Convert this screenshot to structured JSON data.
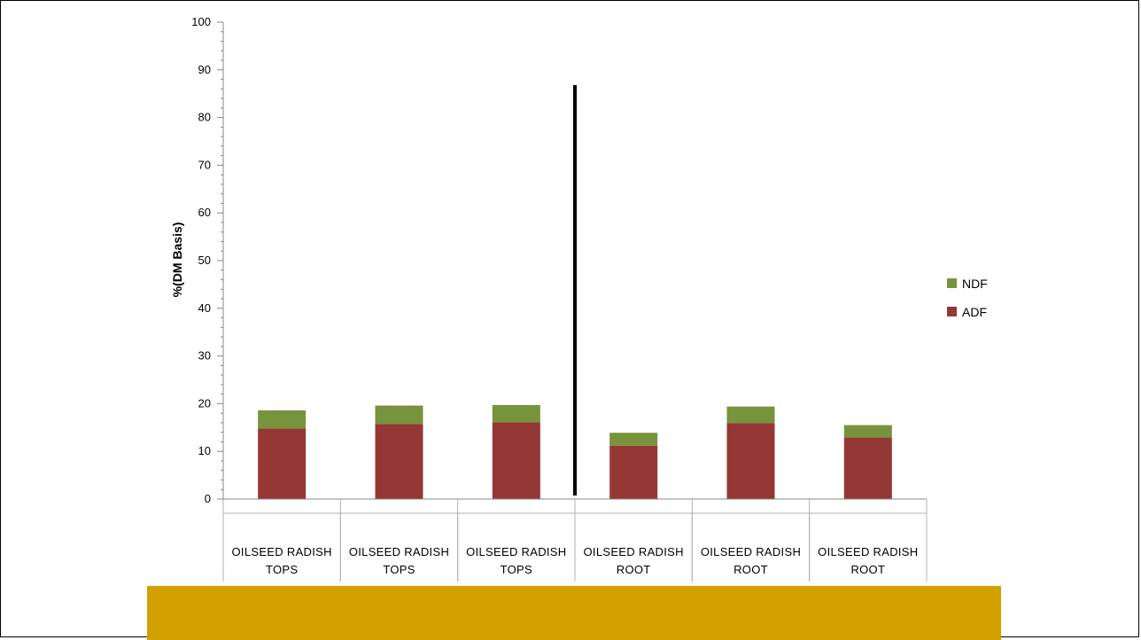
{
  "chart_data": {
    "type": "bar",
    "stacked": true,
    "title": "",
    "xlabel": "",
    "ylabel": "%(DM Basis)",
    "ylim": [
      0,
      100
    ],
    "yticks": [
      0,
      10,
      20,
      30,
      40,
      50,
      60,
      70,
      80,
      90,
      100
    ],
    "grid": false,
    "legend_position": "right",
    "categories": [
      [
        "OILSEED RADISH",
        "TOPS"
      ],
      [
        "OILSEED RADISH",
        "TOPS"
      ],
      [
        "OILSEED RADISH",
        "TOPS"
      ],
      [
        "OILSEED RADISH",
        "ROOT"
      ],
      [
        "OILSEED RADISH",
        "ROOT"
      ],
      [
        "OILSEED RADISH",
        "ROOT"
      ]
    ],
    "series": [
      {
        "name": "ADF",
        "color": "#953735",
        "values": [
          14.8,
          15.7,
          16.1,
          11.2,
          15.9,
          12.9
        ]
      },
      {
        "name": "NDF",
        "color": "#77933c",
        "values": [
          3.8,
          3.9,
          3.6,
          2.7,
          3.5,
          2.6
        ]
      }
    ],
    "legend_order": [
      "NDF",
      "ADF"
    ],
    "divider_between_categories": [
      3,
      4
    ]
  },
  "colors": {
    "footer_bar": "#d4a000",
    "divider": "#000000"
  }
}
